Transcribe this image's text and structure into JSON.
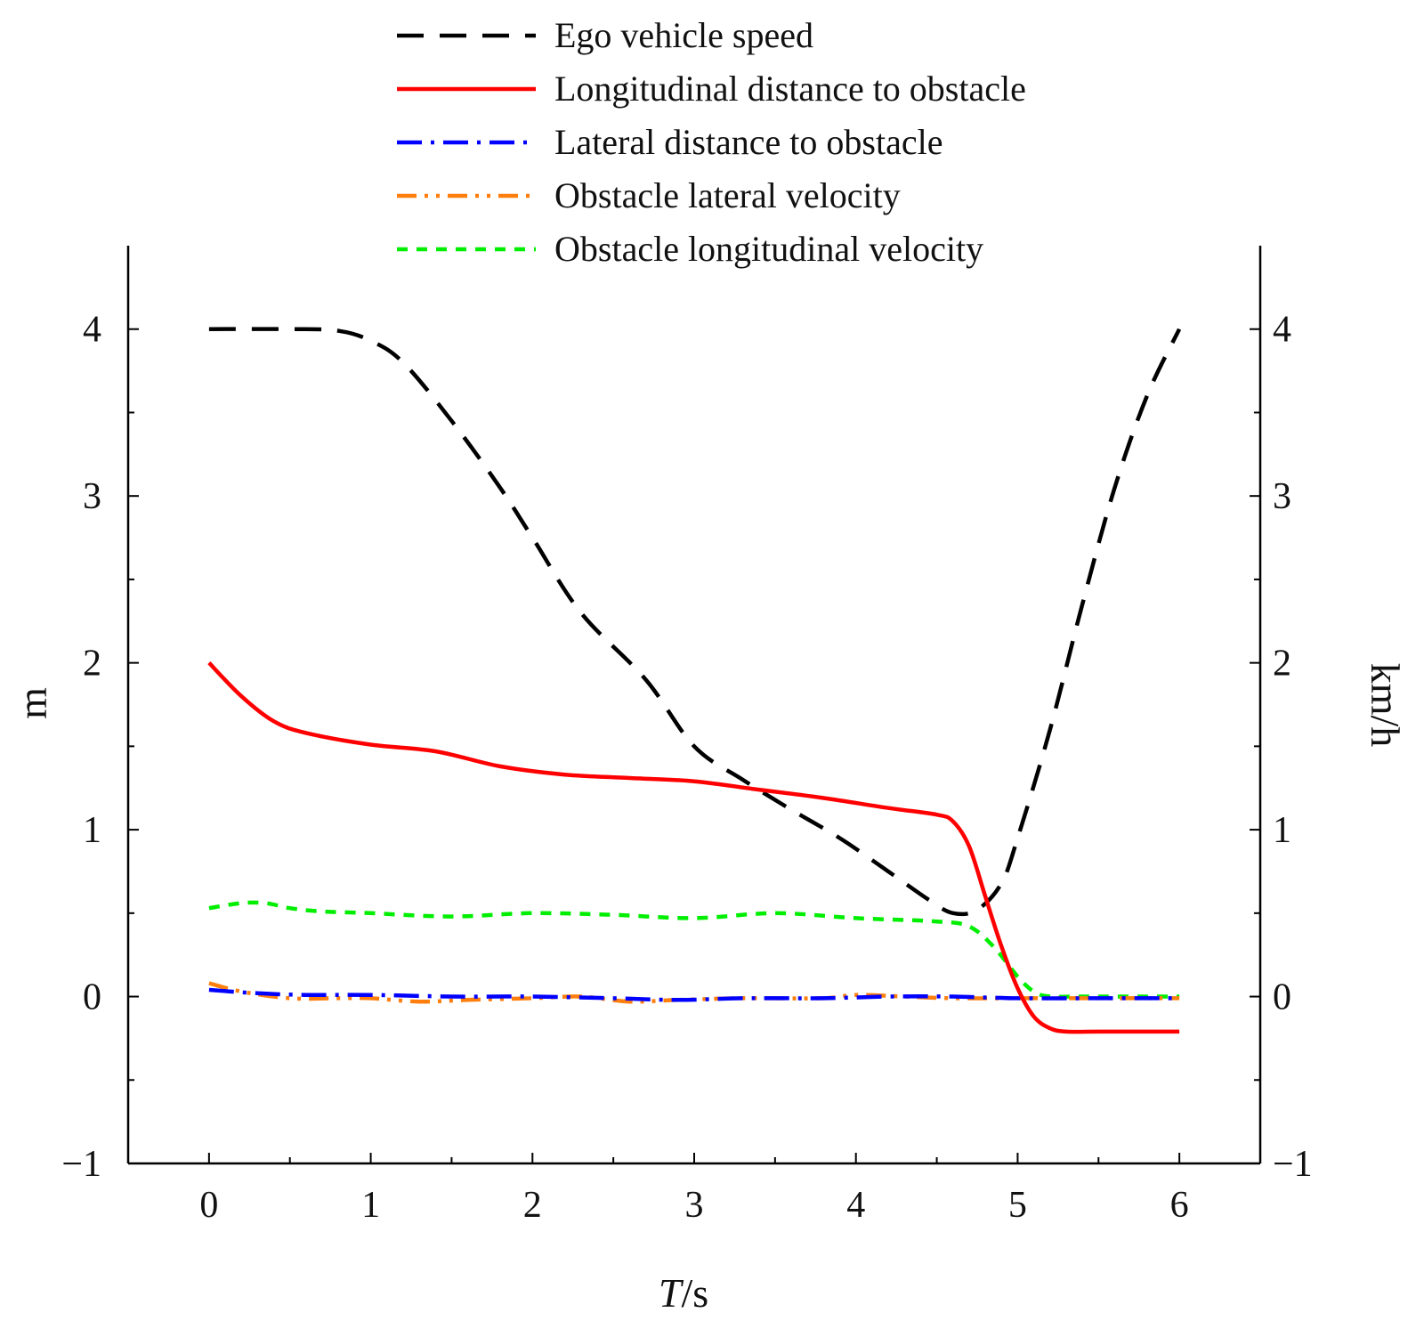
{
  "chart_data": {
    "type": "line",
    "xlabel": {
      "italic": "T",
      "rest": "/s"
    },
    "ylabel_left": "m",
    "ylabel_right": "km/h",
    "xlim": [
      -0.5,
      6.5
    ],
    "ylim": [
      -1,
      4.5
    ],
    "xticks": [
      0,
      1,
      2,
      3,
      4,
      5,
      6
    ],
    "yticks": [
      -1,
      0,
      1,
      2,
      3,
      4
    ],
    "xtick_labels": [
      "0",
      "1",
      "2",
      "3",
      "4",
      "5",
      "6"
    ],
    "ytick_labels": [
      "−1",
      "0",
      "1",
      "2",
      "3",
      "4"
    ],
    "grid": false,
    "legend_position": "top",
    "series": [
      {
        "name": "Ego vehicle speed",
        "color": "#000000",
        "dash": "long-dash",
        "x": [
          0,
          0.5,
          0.8,
          1.0,
          1.2,
          1.5,
          1.8,
          2.0,
          2.3,
          2.7,
          3.0,
          3.3,
          3.6,
          3.9,
          4.2,
          4.45,
          4.6,
          4.75,
          4.9,
          5.0,
          5.2,
          5.4,
          5.6,
          5.8,
          6.0
        ],
        "y": [
          4.0,
          4.0,
          3.99,
          3.93,
          3.8,
          3.45,
          3.05,
          2.75,
          2.3,
          1.9,
          1.5,
          1.3,
          1.12,
          0.95,
          0.75,
          0.58,
          0.5,
          0.52,
          0.68,
          0.95,
          1.6,
          2.35,
          3.05,
          3.6,
          4.0
        ]
      },
      {
        "name": "Longitudinal distance to obstacle",
        "color": "#ff0000",
        "dash": "solid",
        "x": [
          0,
          0.2,
          0.4,
          0.6,
          1.0,
          1.4,
          1.8,
          2.2,
          2.6,
          3.0,
          3.4,
          3.8,
          4.2,
          4.5,
          4.6,
          4.7,
          4.8,
          4.9,
          5.0,
          5.1,
          5.2,
          5.3,
          5.5,
          6.0
        ],
        "y": [
          2.0,
          1.8,
          1.65,
          1.58,
          1.51,
          1.47,
          1.38,
          1.33,
          1.31,
          1.29,
          1.24,
          1.19,
          1.13,
          1.09,
          1.05,
          0.9,
          0.6,
          0.3,
          0.05,
          -0.12,
          -0.19,
          -0.21,
          -0.21,
          -0.21
        ]
      },
      {
        "name": "Lateral distance to obstacle",
        "color": "#0000ff",
        "dash": "dash-dot",
        "x": [
          0,
          0.3,
          0.6,
          1.0,
          1.5,
          2.0,
          2.5,
          2.9,
          3.3,
          3.8,
          4.2,
          4.6,
          5.0,
          5.5,
          6.0
        ],
        "y": [
          0.04,
          0.02,
          0.01,
          0.01,
          0.0,
          0.0,
          -0.01,
          -0.02,
          -0.01,
          -0.01,
          0.0,
          0.0,
          -0.01,
          -0.01,
          -0.01
        ]
      },
      {
        "name": "Obstacle lateral velocity",
        "color": "#ff7f0e",
        "dash": "dash-dot-dot",
        "x": [
          0,
          0.2,
          0.5,
          0.8,
          1.0,
          1.3,
          1.6,
          2.0,
          2.3,
          2.6,
          2.9,
          3.3,
          3.8,
          4.0,
          4.3,
          4.6,
          5.0,
          5.5,
          6.0
        ],
        "y": [
          0.08,
          0.03,
          -0.01,
          -0.01,
          -0.01,
          -0.03,
          -0.02,
          -0.01,
          0.0,
          -0.03,
          -0.02,
          -0.01,
          -0.01,
          0.01,
          0.0,
          -0.01,
          -0.01,
          -0.01,
          -0.01
        ]
      },
      {
        "name": "Obstacle longitudinal velocity",
        "color": "#00ee00",
        "dash": "short-dash",
        "x": [
          0,
          0.2,
          0.35,
          0.5,
          0.7,
          1.0,
          1.5,
          2.0,
          2.5,
          3.0,
          3.5,
          4.0,
          4.5,
          4.7,
          4.85,
          5.0,
          5.1,
          5.2,
          5.4,
          6.0
        ],
        "y": [
          0.53,
          0.56,
          0.56,
          0.53,
          0.51,
          0.5,
          0.48,
          0.5,
          0.49,
          0.47,
          0.5,
          0.47,
          0.45,
          0.42,
          0.3,
          0.12,
          0.03,
          0.0,
          0.0,
          0.0
        ]
      }
    ]
  }
}
